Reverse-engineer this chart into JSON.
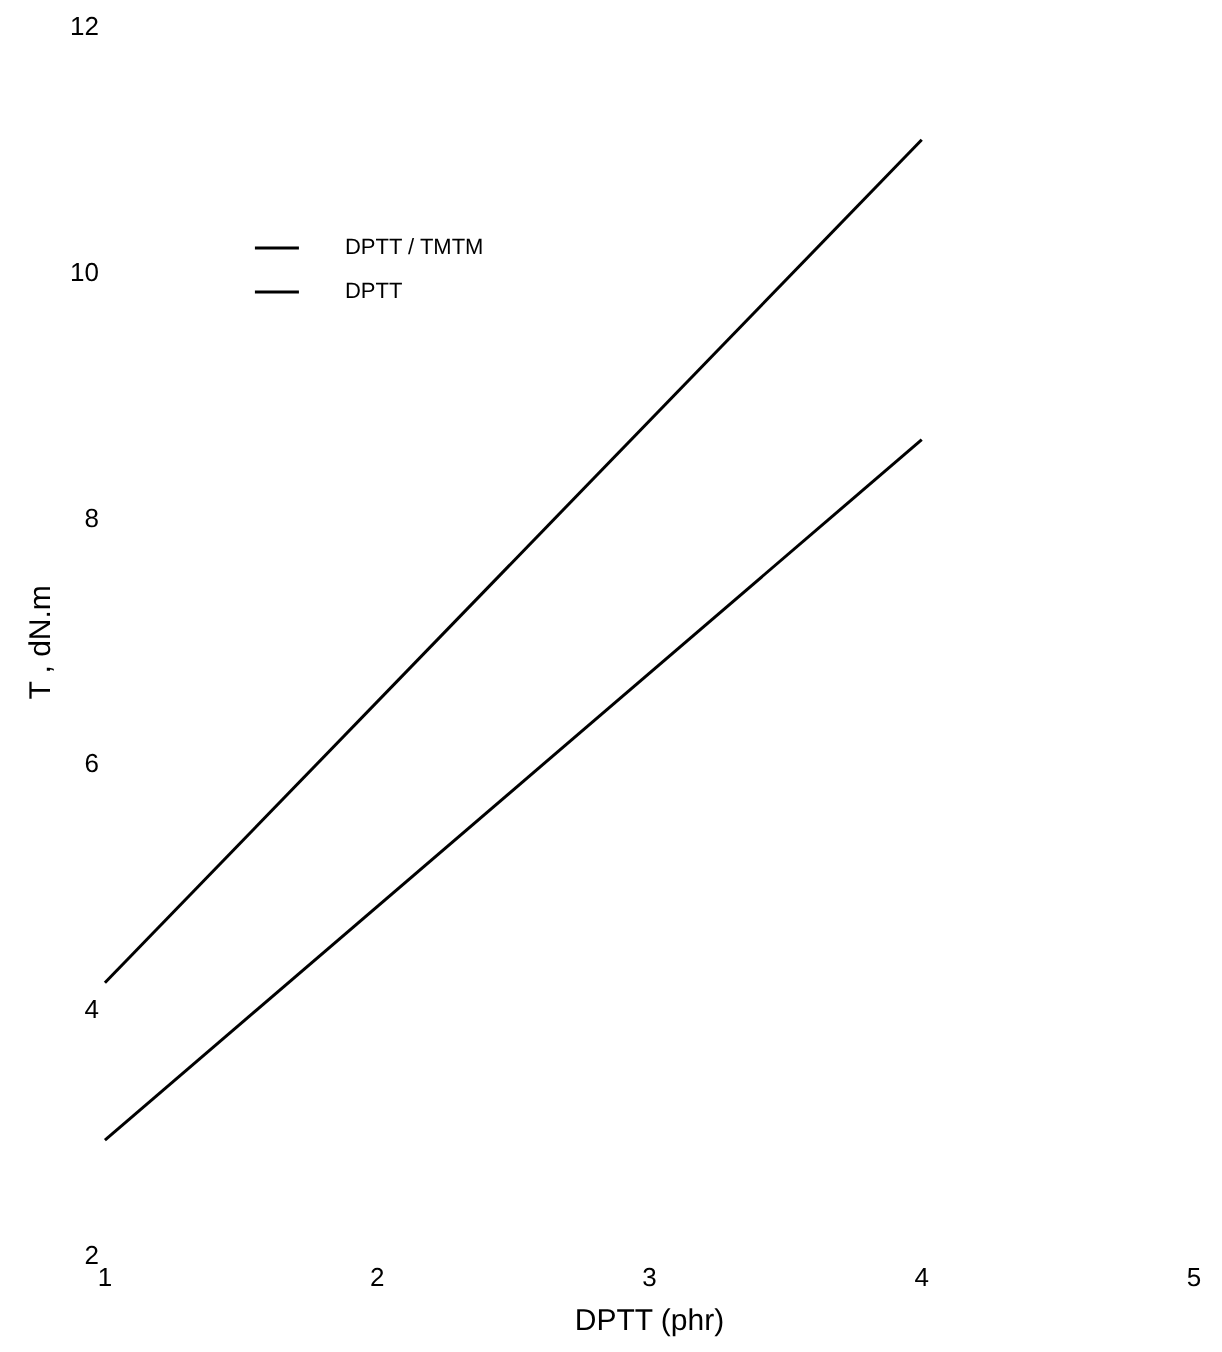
{
  "chart_data": {
    "type": "line",
    "xlabel": "DPTT (phr)",
    "ylabel": "T , dN.m",
    "xlim": [
      1,
      5
    ],
    "xticks": [
      1,
      2,
      3,
      4,
      5
    ],
    "ylim": [
      2,
      12
    ],
    "yticks": [
      2,
      4,
      6,
      8,
      10,
      12
    ],
    "grid": false,
    "legend": "top left",
    "marker": "none",
    "line_style": "solid",
    "x": [
      1,
      4
    ],
    "series": [
      {
        "name": "DPTT / TMTM",
        "color": "#000000",
        "values": [
          4.23,
          11.09
        ]
      },
      {
        "name": "DPTT",
        "color": "#000000",
        "values": [
          2.95,
          8.65
        ]
      }
    ]
  }
}
